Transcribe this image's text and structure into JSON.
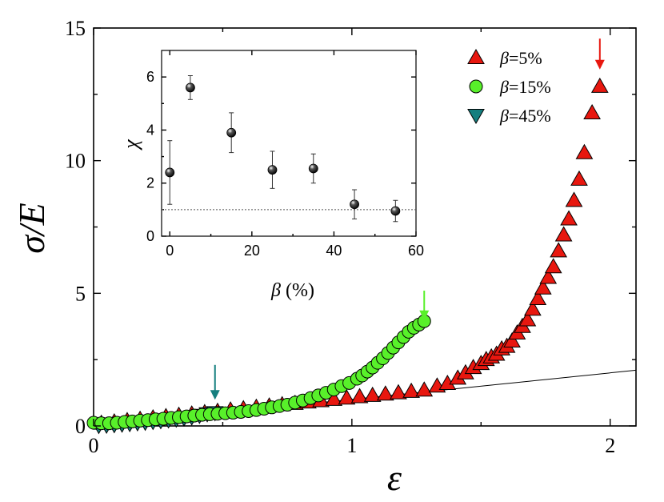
{
  "chart_data": [
    {
      "type": "scatter",
      "title": "",
      "xlabel": "ε",
      "ylabel": "σ/E",
      "xlim": [
        0,
        2.1
      ],
      "ylim": [
        0,
        15
      ],
      "x_ticks": [
        0,
        1,
        2
      ],
      "x_tick_labels": [
        "0",
        "1",
        "2"
      ],
      "y_ticks": [
        0,
        5,
        10,
        15
      ],
      "y_tick_labels": [
        "0",
        "5",
        "10",
        "15"
      ],
      "legend": {
        "position": "top-right"
      },
      "series": [
        {
          "name": "β=5%",
          "legend_prefix": "β",
          "legend_suffix": "=5%",
          "marker": "triangle-up",
          "color": "#e8170f",
          "x": [
            0.03,
            0.08,
            0.13,
            0.18,
            0.23,
            0.28,
            0.33,
            0.38,
            0.43,
            0.48,
            0.53,
            0.58,
            0.63,
            0.68,
            0.73,
            0.78,
            0.83,
            0.88,
            0.93,
            0.98,
            1.03,
            1.08,
            1.13,
            1.18,
            1.23,
            1.28,
            1.33,
            1.37,
            1.41,
            1.44,
            1.47,
            1.5,
            1.52,
            1.54,
            1.56,
            1.58,
            1.6,
            1.62,
            1.64,
            1.66,
            1.68,
            1.7,
            1.72,
            1.74,
            1.76,
            1.78,
            1.8,
            1.82,
            1.84,
            1.86,
            1.88,
            1.9,
            1.93,
            1.96
          ],
          "y": [
            0.1,
            0.15,
            0.2,
            0.25,
            0.3,
            0.35,
            0.4,
            0.45,
            0.5,
            0.55,
            0.6,
            0.65,
            0.7,
            0.75,
            0.8,
            0.85,
            0.9,
            0.95,
            1.0,
            1.05,
            1.1,
            1.15,
            1.2,
            1.25,
            1.3,
            1.35,
            1.5,
            1.6,
            1.8,
            2.0,
            2.2,
            2.35,
            2.5,
            2.6,
            2.7,
            2.9,
            3.0,
            3.2,
            3.5,
            3.75,
            4.0,
            4.4,
            4.8,
            5.2,
            5.6,
            6.0,
            6.6,
            7.2,
            7.8,
            8.5,
            9.3,
            10.3,
            11.8,
            12.8
          ]
        },
        {
          "name": "β=15%",
          "legend_prefix": "β",
          "legend_suffix": "=15%",
          "marker": "circle",
          "color": "#58f02a",
          "x": [
            0.0,
            0.03,
            0.06,
            0.09,
            0.12,
            0.15,
            0.18,
            0.21,
            0.24,
            0.27,
            0.3,
            0.33,
            0.36,
            0.39,
            0.42,
            0.45,
            0.48,
            0.51,
            0.54,
            0.57,
            0.6,
            0.63,
            0.66,
            0.69,
            0.72,
            0.75,
            0.78,
            0.81,
            0.84,
            0.87,
            0.9,
            0.93,
            0.96,
            0.99,
            1.02,
            1.04,
            1.06,
            1.08,
            1.1,
            1.12,
            1.14,
            1.16,
            1.18,
            1.2,
            1.22,
            1.24,
            1.26,
            1.28
          ],
          "y": [
            0.12,
            0.1,
            0.1,
            0.12,
            0.15,
            0.17,
            0.2,
            0.22,
            0.25,
            0.27,
            0.3,
            0.33,
            0.36,
            0.39,
            0.42,
            0.44,
            0.46,
            0.48,
            0.5,
            0.53,
            0.56,
            0.6,
            0.65,
            0.7,
            0.75,
            0.8,
            0.88,
            0.96,
            1.05,
            1.15,
            1.25,
            1.37,
            1.5,
            1.62,
            1.78,
            1.9,
            2.05,
            2.2,
            2.38,
            2.55,
            2.75,
            2.95,
            3.15,
            3.35,
            3.55,
            3.7,
            3.82,
            3.95
          ]
        },
        {
          "name": "β=45%",
          "legend_prefix": "β",
          "legend_suffix": "=45%",
          "marker": "triangle-down",
          "color": "#157f7f",
          "x": [
            0.02,
            0.05,
            0.08,
            0.11,
            0.14,
            0.17,
            0.2,
            0.23,
            0.26,
            0.29,
            0.32,
            0.35,
            0.38,
            0.41,
            0.44,
            0.47
          ],
          "y": [
            0.02,
            0.03,
            0.05,
            0.07,
            0.09,
            0.12,
            0.14,
            0.17,
            0.2,
            0.23,
            0.26,
            0.3,
            0.34,
            0.4,
            0.46,
            0.5
          ]
        }
      ],
      "reference_line": {
        "type": "linear",
        "points": [
          [
            0,
            0
          ],
          [
            2.1,
            2.1
          ]
        ],
        "color": "#000000"
      },
      "annotations": [
        {
          "type": "arrow",
          "x": 1.96,
          "y_from": 14.6,
          "y_to": 13.5,
          "color": "#e8170f"
        },
        {
          "type": "arrow",
          "x": 1.28,
          "y_from": 5.1,
          "y_to": 4.05,
          "color": "#58f02a"
        },
        {
          "type": "arrow",
          "x": 0.47,
          "y_from": 2.3,
          "y_to": 1.05,
          "color": "#157f7f"
        }
      ]
    },
    {
      "type": "scatter",
      "title": "",
      "xlabel": "β (%)",
      "ylabel": "χ",
      "xlim": [
        -2,
        60
      ],
      "ylim": [
        0,
        7
      ],
      "x_ticks": [
        0,
        20,
        40,
        60
      ],
      "x_tick_labels": [
        "0",
        "20",
        "40",
        "60"
      ],
      "y_ticks": [
        0,
        2,
        4,
        6
      ],
      "y_tick_labels": [
        "0",
        "2",
        "4",
        "6"
      ],
      "reference_line": {
        "type": "horizontal",
        "y": 1,
        "style": "dotted"
      },
      "series": [
        {
          "name": "χ",
          "marker": "circle",
          "color": "#000000",
          "x": [
            0,
            5,
            15,
            25,
            35,
            45,
            55
          ],
          "y": [
            2.4,
            5.6,
            3.9,
            2.5,
            2.55,
            1.2,
            0.95
          ],
          "error": [
            1.2,
            0.45,
            0.75,
            0.7,
            0.55,
            0.55,
            0.4
          ]
        }
      ]
    }
  ]
}
